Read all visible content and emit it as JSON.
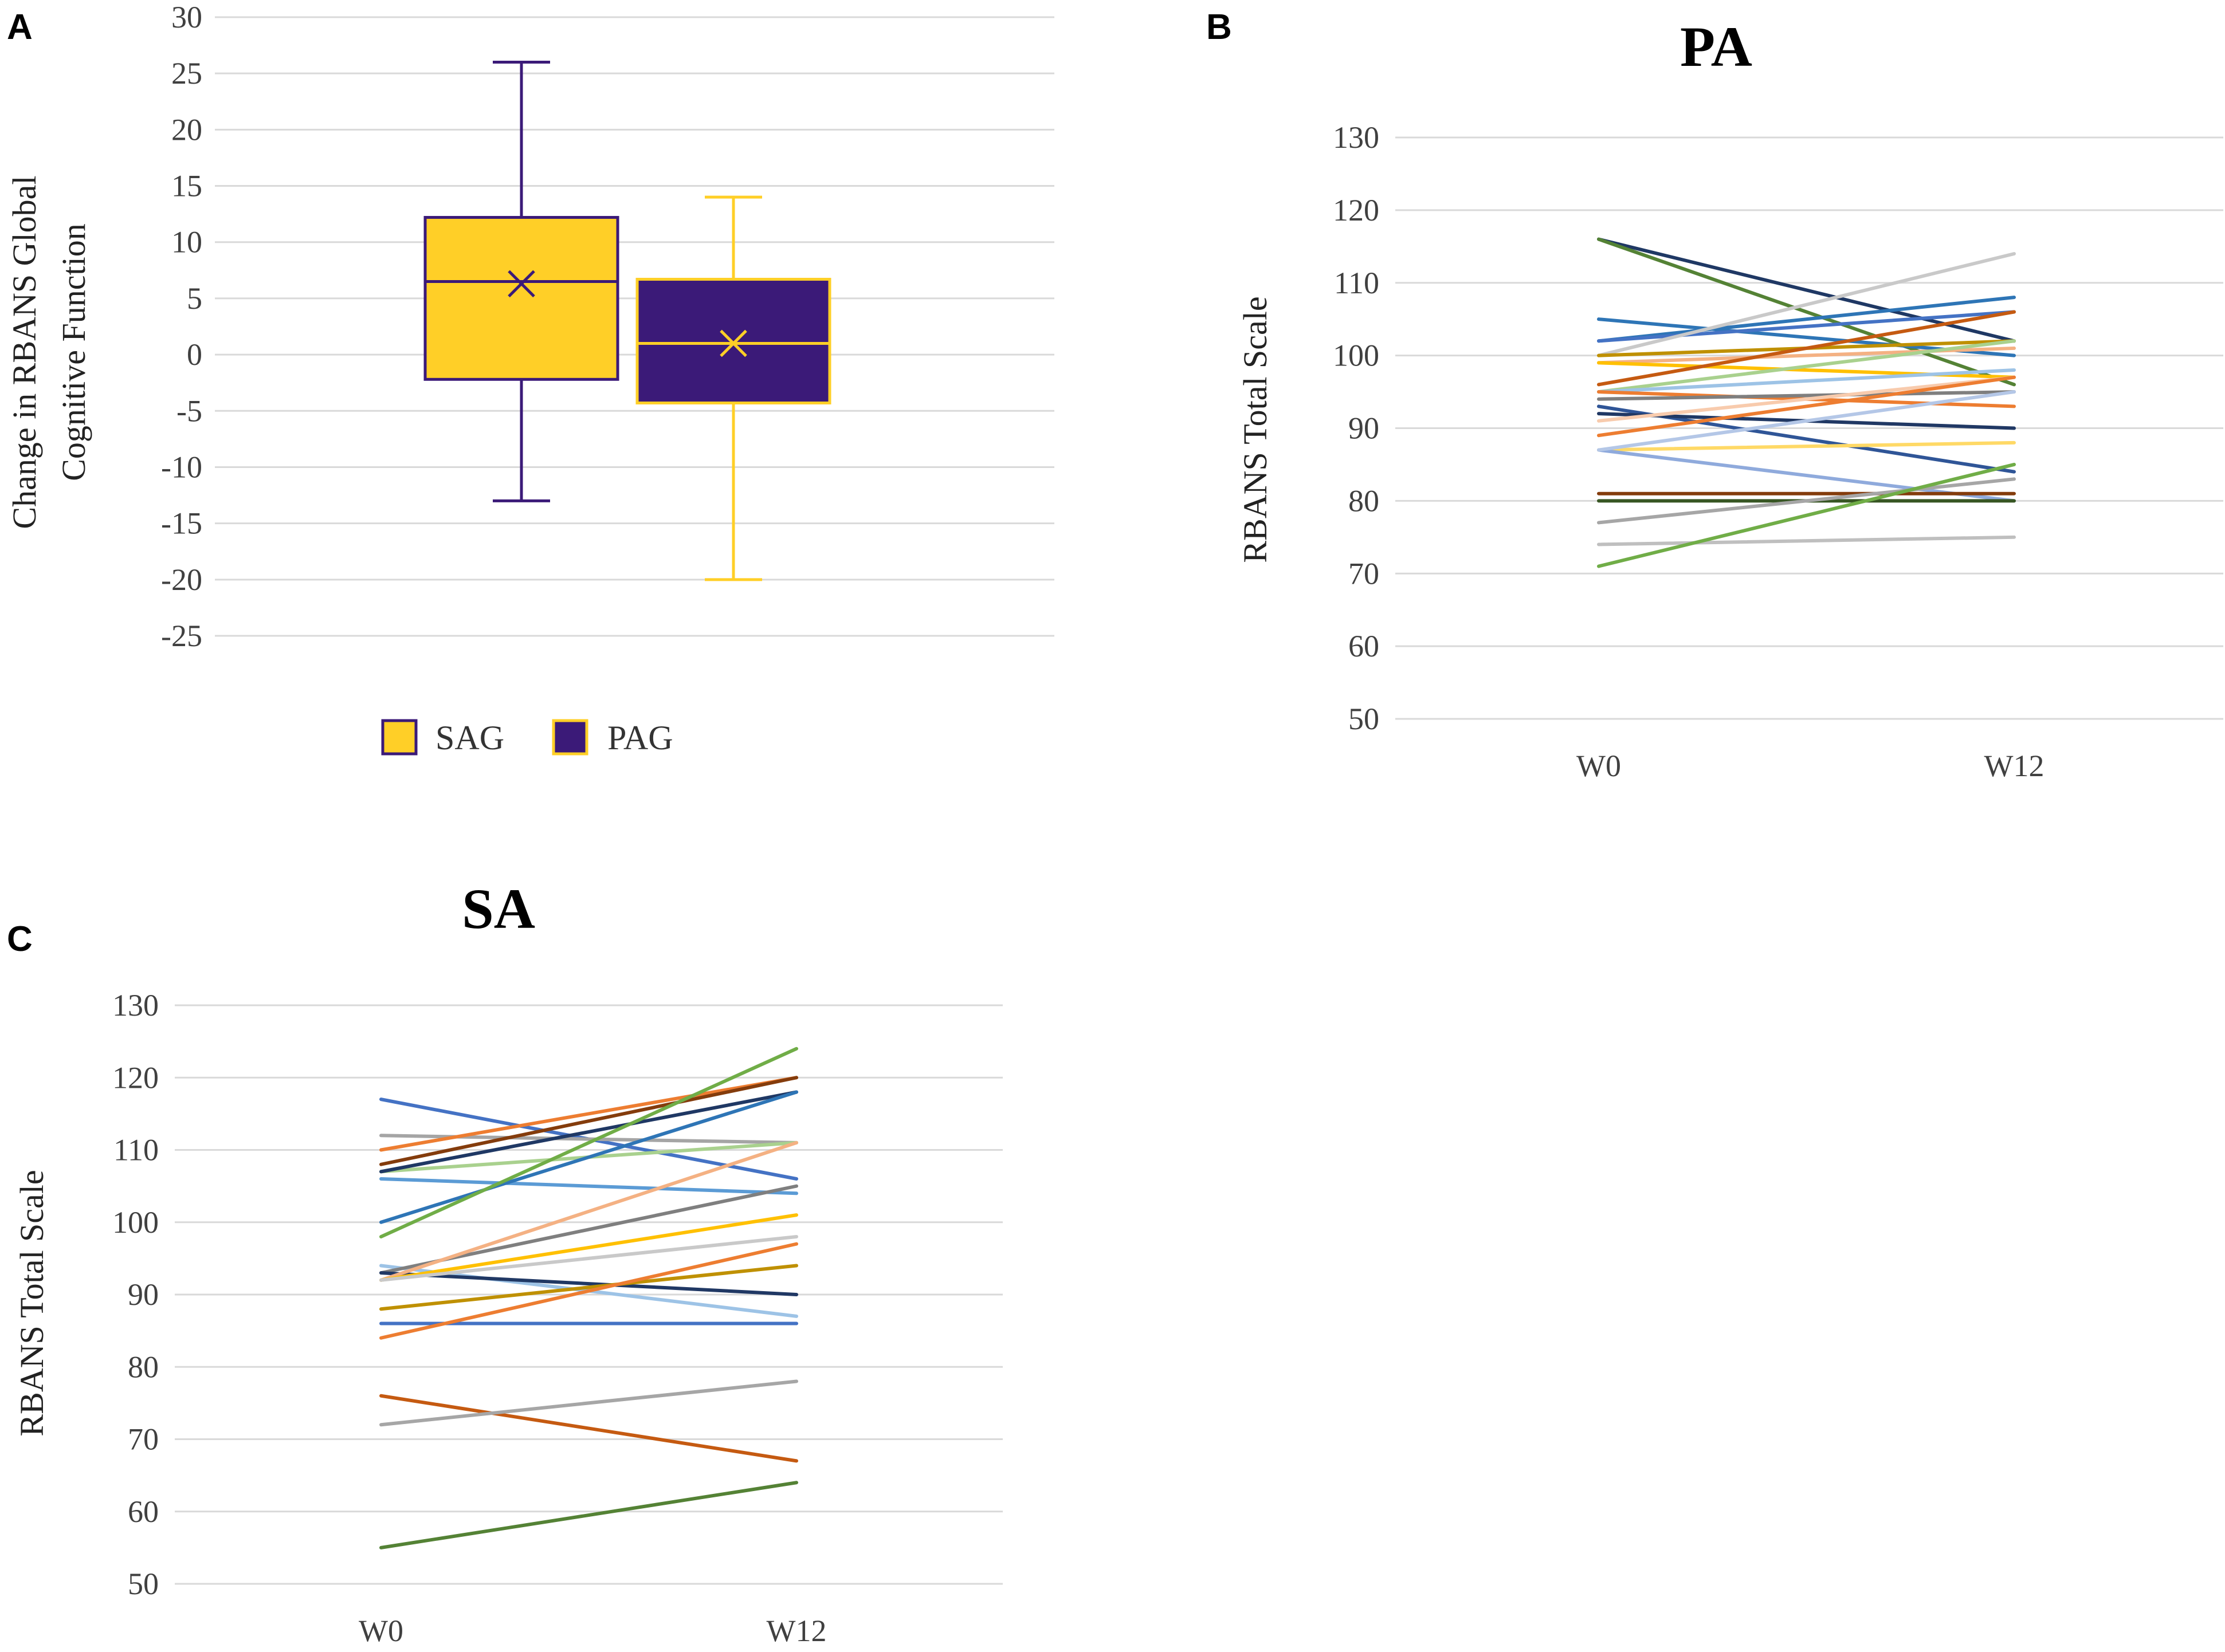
{
  "chart_data": [
    {
      "panel": "A",
      "type": "box",
      "title": "",
      "ylabel": [
        "Change in RBANS Global",
        "Cognitive Function"
      ],
      "ylim": [
        -25,
        30
      ],
      "yticks": [
        30,
        25,
        20,
        15,
        10,
        5,
        0,
        -5,
        -10,
        -15,
        -20,
        -25
      ],
      "grid": true,
      "legend_position": "bottom",
      "series": [
        {
          "name": "SAG",
          "fill": "#FFCF27",
          "edge": "#3B1A78",
          "min": -13,
          "q1": -2.2,
          "median": 6.5,
          "mean": 6.3,
          "q3": 12.2,
          "max": 26
        },
        {
          "name": "PAG",
          "fill": "#3B1A78",
          "edge": "#FFCF27",
          "min": -20,
          "q1": -4.3,
          "median": 1,
          "mean": 1,
          "q3": 6.7,
          "max": 14
        }
      ]
    },
    {
      "panel": "B",
      "type": "line",
      "title": "PA",
      "ylabel": "RBANS Total Scale",
      "categories": [
        "W0",
        "W12"
      ],
      "ylim": [
        50,
        130
      ],
      "yticks": [
        130,
        120,
        110,
        100,
        90,
        80,
        70,
        60,
        50
      ],
      "grid": true,
      "series": [
        {
          "values": [
            116,
            102
          ],
          "color": "#1F3864"
        },
        {
          "values": [
            116,
            96
          ],
          "color": "#548235"
        },
        {
          "values": [
            105,
            100
          ],
          "color": "#2E75B6"
        },
        {
          "values": [
            102,
            108
          ],
          "color": "#2E75B6"
        },
        {
          "values": [
            102,
            106
          ],
          "color": "#4472C4"
        },
        {
          "values": [
            100,
            114
          ],
          "color": "#C9C9C9"
        },
        {
          "values": [
            100,
            102
          ],
          "color": "#BF9000"
        },
        {
          "values": [
            99,
            101
          ],
          "color": "#F4B183"
        },
        {
          "values": [
            99,
            97
          ],
          "color": "#FFC000"
        },
        {
          "values": [
            96,
            106
          ],
          "color": "#C55A11"
        },
        {
          "values": [
            95,
            102
          ],
          "color": "#A9D18E"
        },
        {
          "values": [
            95,
            98
          ],
          "color": "#9DC3E6"
        },
        {
          "values": [
            95,
            93
          ],
          "color": "#ED7D31"
        },
        {
          "values": [
            94,
            95
          ],
          "color": "#7F7F7F"
        },
        {
          "values": [
            93,
            84
          ],
          "color": "#2F5597"
        },
        {
          "values": [
            92,
            90
          ],
          "color": "#203864"
        },
        {
          "values": [
            91,
            97
          ],
          "color": "#F8CBAD"
        },
        {
          "values": [
            89,
            97
          ],
          "color": "#ED7D31"
        },
        {
          "values": [
            87,
            88
          ],
          "color": "#FFD966"
        },
        {
          "values": [
            87,
            80
          ],
          "color": "#8FAADC"
        },
        {
          "values": [
            87,
            95
          ],
          "color": "#B4C7E7"
        },
        {
          "values": [
            81,
            81
          ],
          "color": "#843C0C"
        },
        {
          "values": [
            80,
            80
          ],
          "color": "#375623"
        },
        {
          "values": [
            77,
            83
          ],
          "color": "#A6A6A6"
        },
        {
          "values": [
            74,
            75
          ],
          "color": "#BFBFBF"
        },
        {
          "values": [
            71,
            85
          ],
          "color": "#70AD47"
        }
      ]
    },
    {
      "panel": "C",
      "type": "line",
      "title": "SA",
      "ylabel": "RBANS Total Scale",
      "categories": [
        "W0",
        "W12"
      ],
      "ylim": [
        50,
        130
      ],
      "yticks": [
        130,
        120,
        110,
        100,
        90,
        80,
        70,
        60,
        50
      ],
      "grid": true,
      "series": [
        {
          "values": [
            117,
            106
          ],
          "color": "#4472C4"
        },
        {
          "values": [
            112,
            111
          ],
          "color": "#A5A5A5"
        },
        {
          "values": [
            110,
            120
          ],
          "color": "#ED7D31"
        },
        {
          "values": [
            108,
            120
          ],
          "color": "#843C0C"
        },
        {
          "values": [
            107,
            111
          ],
          "color": "#A9D18E"
        },
        {
          "values": [
            107,
            118
          ],
          "color": "#1F3864"
        },
        {
          "values": [
            106,
            104
          ],
          "color": "#5B9BD5"
        },
        {
          "values": [
            100,
            118
          ],
          "color": "#2E75B6"
        },
        {
          "values": [
            98,
            124
          ],
          "color": "#70AD47"
        },
        {
          "values": [
            94,
            87
          ],
          "color": "#9DC3E6"
        },
        {
          "values": [
            93,
            105
          ],
          "color": "#7F7F7F"
        },
        {
          "values": [
            93,
            90
          ],
          "color": "#203864"
        },
        {
          "values": [
            92,
            111
          ],
          "color": "#F4B183"
        },
        {
          "values": [
            92,
            101
          ],
          "color": "#FFC000"
        },
        {
          "values": [
            92,
            98
          ],
          "color": "#C9C9C9"
        },
        {
          "values": [
            88,
            94
          ],
          "color": "#BF9000"
        },
        {
          "values": [
            86,
            86
          ],
          "color": "#4472C4"
        },
        {
          "values": [
            84,
            97
          ],
          "color": "#ED7D31"
        },
        {
          "values": [
            76,
            67
          ],
          "color": "#C55A11"
        },
        {
          "values": [
            72,
            78
          ],
          "color": "#A6A6A6"
        },
        {
          "values": [
            55,
            64
          ],
          "color": "#548235"
        }
      ]
    }
  ]
}
